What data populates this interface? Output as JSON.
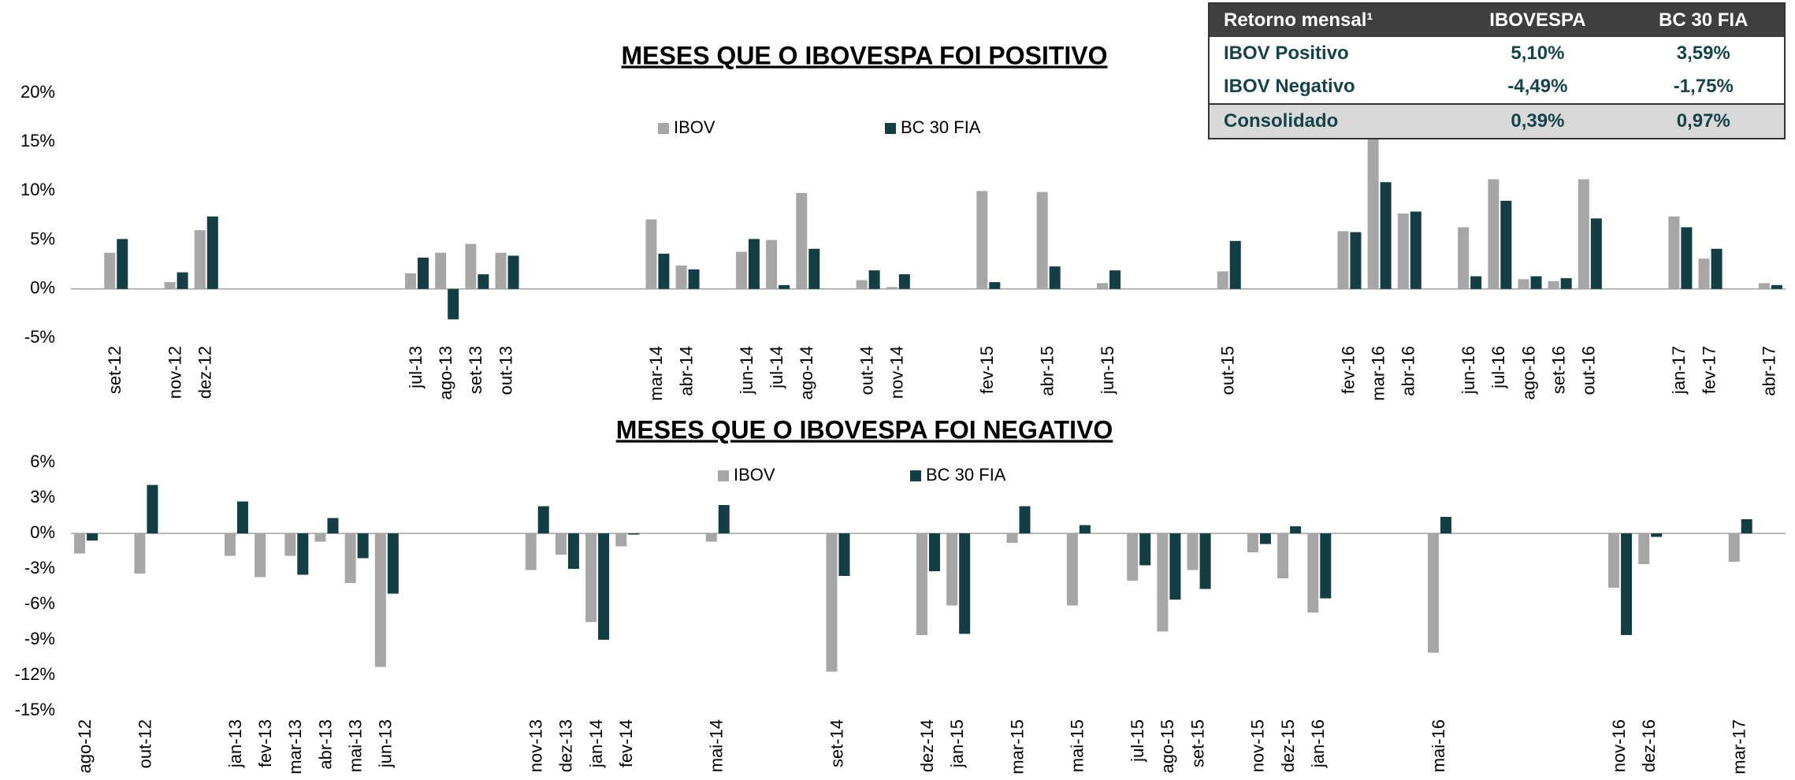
{
  "chart_data": [
    {
      "type": "bar",
      "title": "MESES QUE O IBOVESPA FOI POSITIVO",
      "categories": [
        null,
        "set-12",
        null,
        "nov-12",
        "dez-12",
        null,
        null,
        null,
        null,
        null,
        null,
        "jul-13",
        "ago-13",
        "set-13",
        "out-13",
        null,
        null,
        null,
        null,
        "mar-14",
        "abr-14",
        null,
        "jun-14",
        "jul-14",
        "ago-14",
        null,
        "out-14",
        "nov-14",
        null,
        null,
        "fev-15",
        null,
        "abr-15",
        null,
        "jun-15",
        null,
        null,
        null,
        "out-15",
        null,
        null,
        null,
        "fev-16",
        "mar-16",
        "abr-16",
        null,
        "jun-16",
        "jul-16",
        "ago-16",
        "set-16",
        "out-16",
        null,
        null,
        "jan-17",
        "fev-17",
        null,
        "abr-17"
      ],
      "series": [
        {
          "name": "IBOV",
          "color": "#a6a6a6",
          "values": [
            null,
            3.7,
            null,
            0.7,
            6.0,
            null,
            null,
            null,
            null,
            null,
            null,
            1.6,
            3.7,
            4.6,
            3.7,
            null,
            null,
            null,
            null,
            7.1,
            2.4,
            null,
            3.8,
            5.0,
            9.8,
            null,
            0.9,
            0.2,
            null,
            null,
            10.0,
            null,
            9.9,
            null,
            0.6,
            null,
            null,
            null,
            1.8,
            null,
            null,
            null,
            5.9,
            17.0,
            7.7,
            null,
            6.3,
            11.2,
            1.0,
            0.8,
            11.2,
            null,
            null,
            7.4,
            3.1,
            null,
            0.6
          ]
        },
        {
          "name": "BC 30 FIA",
          "color": "#133f44",
          "values": [
            null,
            5.1,
            null,
            1.7,
            7.4,
            null,
            null,
            null,
            null,
            null,
            null,
            3.2,
            -3.1,
            1.5,
            3.4,
            null,
            null,
            null,
            null,
            3.6,
            2.0,
            null,
            5.1,
            0.4,
            4.1,
            null,
            1.9,
            1.5,
            null,
            null,
            0.7,
            null,
            2.3,
            null,
            1.9,
            null,
            null,
            null,
            4.9,
            null,
            null,
            null,
            5.8,
            10.9,
            7.9,
            null,
            1.3,
            9.0,
            1.3,
            1.1,
            7.2,
            null,
            null,
            6.3,
            4.1,
            null,
            0.4
          ]
        }
      ],
      "ylim": [
        -5,
        20
      ],
      "yticks": [
        {
          "value": -5,
          "label": "-5%"
        },
        {
          "value": 0,
          "label": "0%"
        },
        {
          "value": 5,
          "label": "5%"
        },
        {
          "value": 10,
          "label": "10%"
        },
        {
          "value": 15,
          "label": "15%"
        },
        {
          "value": 20,
          "label": "20%"
        }
      ],
      "grid": false
    },
    {
      "type": "bar",
      "title": "MESES QUE O IBOVESPA FOI NEGATIVO",
      "categories": [
        "ago-12",
        null,
        "out-12",
        null,
        null,
        "jan-13",
        "fev-13",
        "mar-13",
        "abr-13",
        "mai-13",
        "jun-13",
        null,
        null,
        null,
        null,
        "nov-13",
        "dez-13",
        "jan-14",
        "fev-14",
        null,
        null,
        "mai-14",
        null,
        null,
        null,
        "set-14",
        null,
        null,
        "dez-14",
        "jan-15",
        null,
        "mar-15",
        null,
        "mai-15",
        null,
        "jul-15",
        "ago-15",
        "set-15",
        null,
        "nov-15",
        "dez-15",
        "jan-16",
        null,
        null,
        null,
        "mai-16",
        null,
        null,
        null,
        null,
        null,
        "nov-16",
        "dez-16",
        null,
        null,
        "mar-17",
        null
      ],
      "series": [
        {
          "name": "IBOV",
          "color": "#a6a6a6",
          "values": [
            -1.7,
            null,
            -3.4,
            null,
            null,
            -1.9,
            -3.7,
            -1.9,
            -0.7,
            -4.2,
            -11.3,
            null,
            null,
            null,
            null,
            -3.1,
            -1.8,
            -7.5,
            -1.1,
            null,
            null,
            -0.7,
            null,
            null,
            null,
            -11.7,
            null,
            null,
            -8.6,
            -6.1,
            null,
            -0.8,
            null,
            -6.1,
            null,
            -4.0,
            -8.3,
            -3.1,
            null,
            -1.6,
            -3.8,
            -6.7,
            null,
            null,
            null,
            -10.1,
            null,
            null,
            null,
            null,
            null,
            -4.6,
            -2.6,
            null,
            null,
            -2.4,
            null
          ]
        },
        {
          "name": "BC 30 FIA",
          "color": "#133f44",
          "values": [
            -0.6,
            null,
            4.1,
            null,
            null,
            2.7,
            0,
            -3.5,
            1.3,
            -2.1,
            -5.1,
            null,
            null,
            null,
            null,
            2.3,
            -3.0,
            -9.0,
            -0.1,
            null,
            null,
            2.4,
            null,
            null,
            null,
            -3.6,
            null,
            null,
            -3.2,
            -8.5,
            null,
            2.3,
            null,
            0.7,
            null,
            -2.7,
            -5.6,
            -4.7,
            null,
            -0.9,
            0.6,
            -5.5,
            null,
            null,
            null,
            1.4,
            null,
            null,
            null,
            null,
            null,
            -8.6,
            -0.3,
            null,
            null,
            1.2,
            null
          ]
        }
      ],
      "ylim": [
        -15,
        6
      ],
      "yticks": [
        {
          "value": -15,
          "label": "-15%"
        },
        {
          "value": -12,
          "label": "-12%"
        },
        {
          "value": -9,
          "label": "-9%"
        },
        {
          "value": -6,
          "label": "-6%"
        },
        {
          "value": -3,
          "label": "-3%"
        },
        {
          "value": 0,
          "label": "0%"
        },
        {
          "value": 3,
          "label": "3%"
        },
        {
          "value": 6,
          "label": "6%"
        }
      ],
      "grid": false
    }
  ],
  "table": {
    "header": [
      "Retorno mensal¹",
      "IBOVESPA",
      "BC 30 FIA"
    ],
    "rows": [
      [
        "IBOV Positivo",
        "5,10%",
        "3,59%"
      ],
      [
        "IBOV Negativo",
        "-4,49%",
        "-1,75%"
      ],
      [
        "Consolidado",
        "0,39%",
        "0,97%"
      ]
    ]
  }
}
